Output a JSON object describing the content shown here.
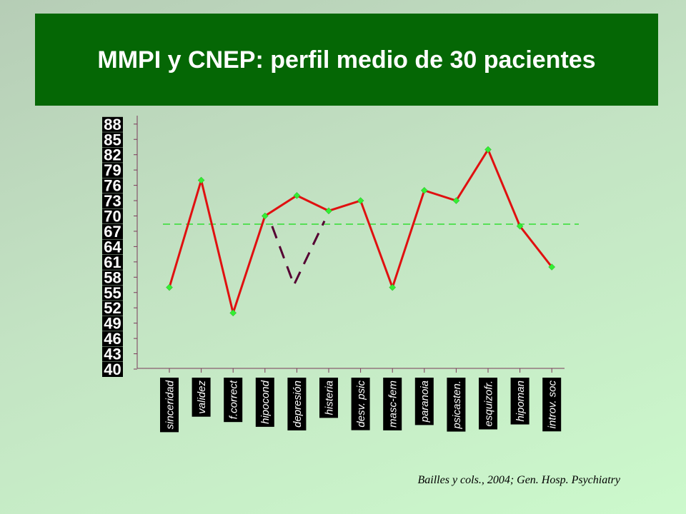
{
  "slide": {
    "title": "MMPI y CNEP: perfil medio de 30 pacientes",
    "citation": "Bailles y cols., 2004; Gen. Hosp. Psychiatry"
  },
  "colors": {
    "title_bg": "#056705",
    "title_text": "#ffffff",
    "line": "#e01010",
    "marker": "#33ee33",
    "reference_line": "#33dd33",
    "dip": "#550033",
    "label_bg": "#000000",
    "label_text": "#ffffff"
  },
  "chart_data": {
    "type": "line",
    "title": "",
    "xlabel": "",
    "ylabel": "",
    "categories": [
      "sinceridad",
      "validez",
      "f.correct",
      "hipocond",
      "depresión",
      "histeria",
      "desv. psic",
      "masc-fem",
      "paranoia",
      "psicasten.",
      "esquizofr.",
      "hipoman",
      "introv. soc"
    ],
    "series": [
      {
        "values": [
          56,
          77,
          51,
          70,
          74,
          71,
          73,
          56,
          75,
          73,
          83,
          68,
          60
        ]
      }
    ],
    "ylim": [
      40,
      90
    ],
    "yticks": [
      40,
      43,
      46,
      49,
      52,
      55,
      58,
      61,
      64,
      67,
      70,
      73,
      76,
      79,
      82,
      85,
      88
    ],
    "reference_line": {
      "y": 68.4,
      "style": "dashed"
    },
    "annotation_dip": {
      "x_from": "hipocond",
      "x_to": "histeria",
      "from": 68,
      "bottom": 56.5,
      "to": 69,
      "style": "dashed"
    },
    "grid": false,
    "legend": "none"
  }
}
